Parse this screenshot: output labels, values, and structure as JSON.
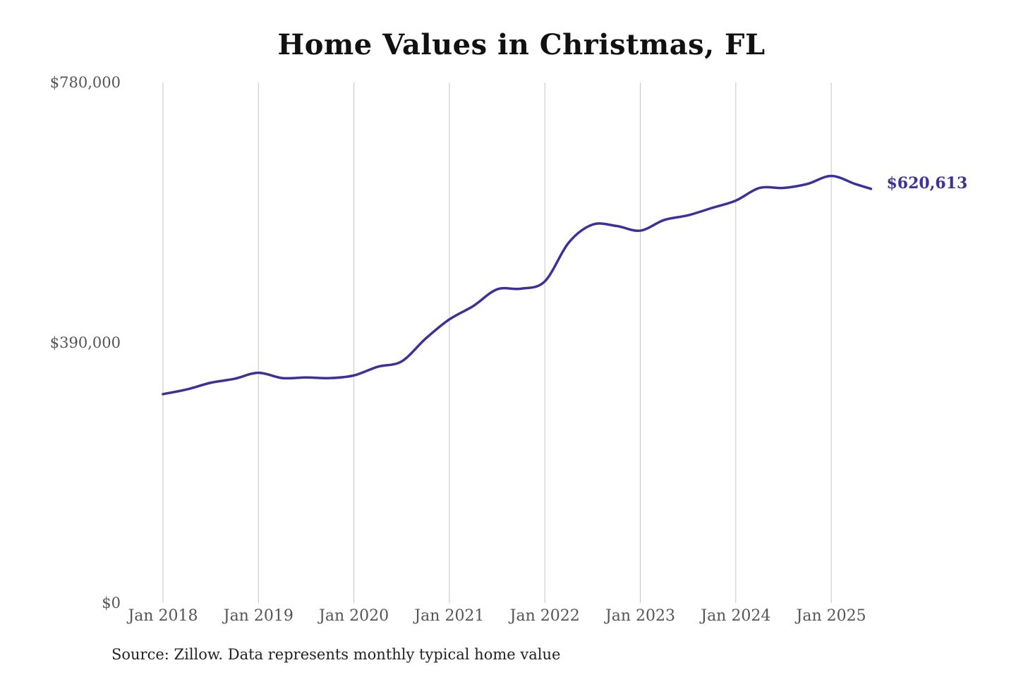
{
  "chart_data": {
    "type": "line",
    "title": "Home Values in Christmas, FL",
    "xlabel": "",
    "ylabel": "",
    "ylim": [
      0,
      780000
    ],
    "y_ticks": [
      {
        "value": 0,
        "label": "$0"
      },
      {
        "value": 390000,
        "label": "$390,000"
      },
      {
        "value": 780000,
        "label": "$780,000"
      }
    ],
    "x_ticks": [
      {
        "value": "2018-01",
        "label": "Jan 2018"
      },
      {
        "value": "2019-01",
        "label": "Jan 2019"
      },
      {
        "value": "2020-01",
        "label": "Jan 2020"
      },
      {
        "value": "2021-01",
        "label": "Jan 2021"
      },
      {
        "value": "2022-01",
        "label": "Jan 2022"
      },
      {
        "value": "2023-01",
        "label": "Jan 2023"
      },
      {
        "value": "2024-01",
        "label": "Jan 2024"
      },
      {
        "value": "2025-01",
        "label": "Jan 2025"
      }
    ],
    "grid": {
      "vertical": true,
      "horizontal": false
    },
    "series": [
      {
        "color": "#3b3199",
        "x": [
          "2018-01",
          "2018-04",
          "2018-07",
          "2018-10",
          "2019-01",
          "2019-04",
          "2019-07",
          "2019-10",
          "2020-01",
          "2020-04",
          "2020-07",
          "2020-10",
          "2021-01",
          "2021-04",
          "2021-07",
          "2021-10",
          "2022-01",
          "2022-04",
          "2022-07",
          "2022-10",
          "2023-01",
          "2023-04",
          "2023-07",
          "2023-10",
          "2024-01",
          "2024-04",
          "2024-07",
          "2024-10",
          "2025-01",
          "2025-04",
          "2025-06"
        ],
        "values": [
          313000,
          320000,
          330000,
          336000,
          345000,
          337000,
          338000,
          337000,
          341000,
          354000,
          362000,
          396000,
          425000,
          445000,
          470000,
          471000,
          482000,
          540000,
          567000,
          565000,
          558000,
          574000,
          581000,
          592000,
          603000,
          622000,
          622000,
          628000,
          640000,
          628000,
          620613
        ],
        "end_label": "$620,613"
      }
    ]
  },
  "source_note": "Source: Zillow. Data represents monthly typical home value"
}
